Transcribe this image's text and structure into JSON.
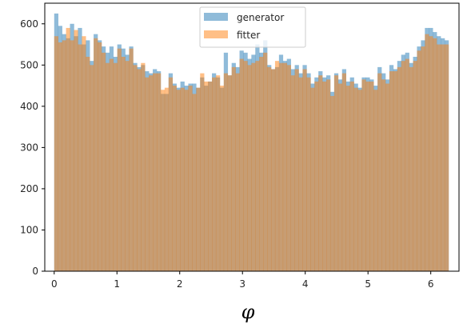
{
  "chart_data": {
    "type": "histogram",
    "xlabel": "φ",
    "ylabel": "",
    "xlim": [
      -0.15,
      6.45
    ],
    "ylim": [
      0,
      650
    ],
    "x_ticks": [
      0,
      1,
      2,
      3,
      4,
      5,
      6
    ],
    "y_ticks": [
      0,
      100,
      200,
      300,
      400,
      500,
      600
    ],
    "bins": {
      "start": 0.0,
      "end": 6.2832,
      "count": 100
    },
    "legend": {
      "position": "upper center"
    },
    "series": [
      {
        "name": "generator",
        "color": "#1f77b4",
        "alpha": 0.5,
        "values": [
          625,
          595,
          575,
          565,
          600,
          570,
          590,
          550,
          560,
          510,
          575,
          560,
          545,
          530,
          545,
          520,
          550,
          540,
          525,
          545,
          505,
          495,
          500,
          485,
          480,
          490,
          485,
          430,
          430,
          480,
          455,
          445,
          460,
          450,
          455,
          455,
          445,
          470,
          450,
          460,
          480,
          470,
          445,
          530,
          475,
          505,
          495,
          535,
          530,
          515,
          525,
          550,
          530,
          560,
          500,
          490,
          495,
          525,
          510,
          515,
          490,
          500,
          480,
          500,
          480,
          455,
          470,
          485,
          470,
          475,
          435,
          480,
          465,
          490,
          460,
          470,
          455,
          445,
          470,
          470,
          465,
          450,
          495,
          480,
          465,
          500,
          490,
          510,
          525,
          530,
          505,
          520,
          545,
          560,
          590,
          590,
          580,
          570,
          565,
          560
        ]
      },
      {
        "name": "fitter",
        "color": "#ff7f0e",
        "alpha": 0.5,
        "values": [
          570,
          555,
          560,
          590,
          560,
          585,
          550,
          570,
          520,
          500,
          565,
          555,
          530,
          505,
          515,
          505,
          540,
          520,
          510,
          540,
          500,
          490,
          505,
          470,
          475,
          480,
          480,
          440,
          445,
          470,
          450,
          440,
          445,
          440,
          450,
          430,
          445,
          480,
          460,
          460,
          470,
          475,
          450,
          480,
          475,
          495,
          480,
          515,
          510,
          500,
          505,
          510,
          520,
          530,
          495,
          490,
          510,
          505,
          505,
          500,
          475,
          490,
          470,
          490,
          470,
          445,
          460,
          475,
          460,
          465,
          425,
          475,
          455,
          480,
          450,
          460,
          445,
          440,
          465,
          460,
          460,
          440,
          480,
          465,
          455,
          485,
          485,
          495,
          510,
          515,
          495,
          510,
          535,
          545,
          575,
          570,
          565,
          550,
          550,
          550
        ]
      }
    ]
  }
}
